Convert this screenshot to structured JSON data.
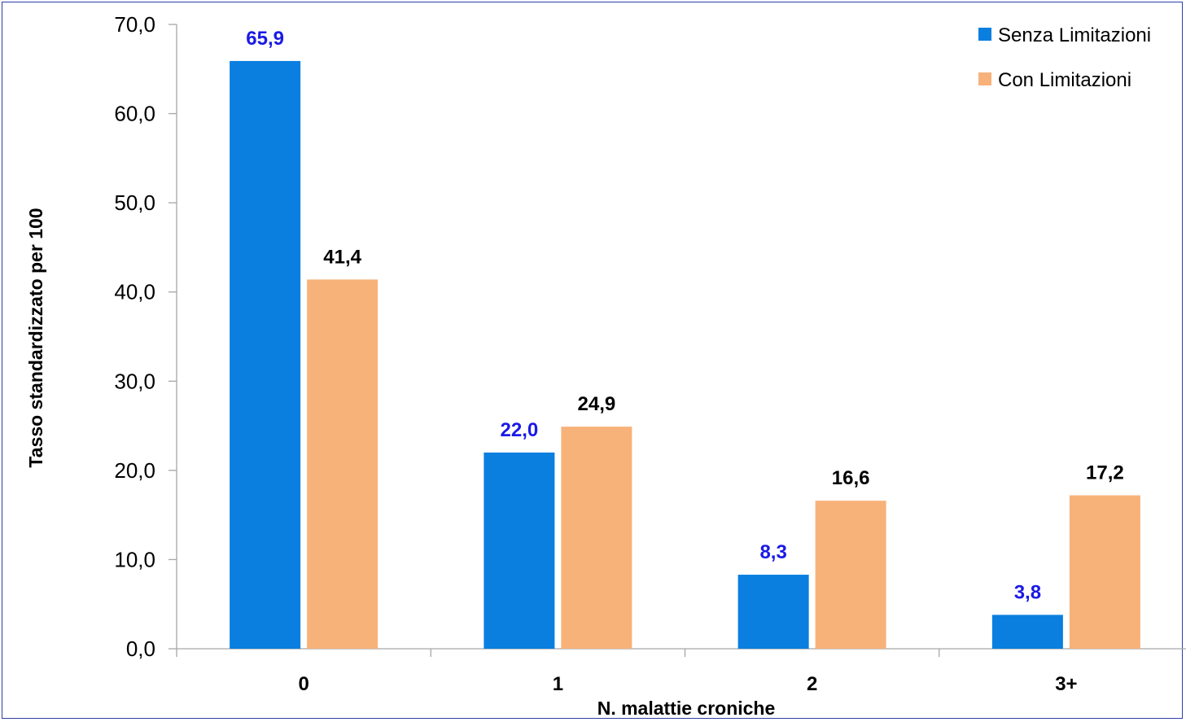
{
  "chart_data": {
    "type": "bar",
    "categories": [
      "0",
      "1",
      "2",
      "3+"
    ],
    "series": [
      {
        "name": "Senza Limitazioni",
        "values": [
          65.9,
          22.0,
          8.3,
          3.8
        ],
        "color": "#0a7fe0",
        "label_color": "#1a1ae6",
        "labels": [
          "65,9",
          "22,0",
          "8,3",
          "3,8"
        ]
      },
      {
        "name": "Con Limitazioni",
        "values": [
          41.4,
          24.9,
          16.6,
          17.2
        ],
        "color": "#f7b27a",
        "label_color": "#000000",
        "labels": [
          "41,4",
          "24,9",
          "16,6",
          "17,2"
        ]
      }
    ],
    "xlabel": "N. malattie croniche",
    "ylabel": "Tasso standardizzato per 100",
    "ylim": [
      0,
      70
    ],
    "yticks": [
      0,
      10,
      20,
      30,
      40,
      50,
      60,
      70
    ],
    "ytick_labels": [
      "0,0",
      "10,0",
      "20,0",
      "30,0",
      "40,0",
      "50,0",
      "60,0",
      "70,0"
    ],
    "grid": false,
    "legend_position": "top-right"
  }
}
